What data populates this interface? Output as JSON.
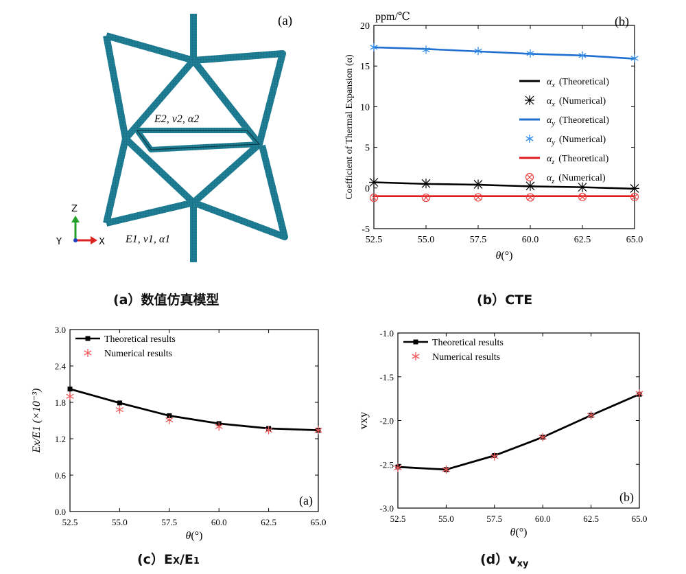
{
  "panel_a": {
    "label": "(a)",
    "layer2_props": "E2, ν2, α2",
    "layer1_props": "E1, ν1, α1",
    "axes": {
      "z": "Z",
      "y": "Y",
      "x": "X"
    },
    "colors": {
      "mesh": "#1f7f96",
      "mesh_dark": "#145a6b",
      "axis_z": "#22a02a",
      "axis_x": "#d22",
      "axis_y": "#2040c0"
    }
  },
  "captions": {
    "a": "(a）数值仿真模型",
    "b": "(b）CTE",
    "c_prefix": "(c）E",
    "c_sub_x": "X",
    "c_mid": "/E",
    "c_sub_1": "1",
    "d_prefix": "(d）v",
    "d_sub": "xy"
  },
  "chart_data": [
    {
      "type": "line",
      "panel_label": "(b)",
      "unit": "ppm/℃",
      "ylabel": "Coefficient of Thermal Expansion (α)",
      "xlabel": "θ(°)",
      "x": [
        52.5,
        55.0,
        57.5,
        60.0,
        62.5,
        65.0
      ],
      "xticks": [
        "52.5",
        "55.0",
        "57.5",
        "60.0",
        "62.5",
        "65.0"
      ],
      "yticks": [
        "-5",
        "0",
        "5",
        "10",
        "15",
        "20"
      ],
      "xlim": [
        52.5,
        65.0
      ],
      "ylim": [
        -5,
        20
      ],
      "series": [
        {
          "name": "αx (Theoretical)",
          "sym": "α",
          "sub": "x",
          "kind": "(Theoretical)",
          "style": "line",
          "color": "#000000",
          "values": [
            0.7,
            0.5,
            0.4,
            0.2,
            0.1,
            -0.1
          ]
        },
        {
          "name": "αx (Numerical)",
          "sym": "α",
          "sub": "x",
          "kind": "(Numerical)",
          "style": "star",
          "color": "#000000",
          "values": [
            0.7,
            0.55,
            0.45,
            0.25,
            0.1,
            -0.05
          ]
        },
        {
          "name": "αy (Theoretical)",
          "sym": "α",
          "sub": "y",
          "kind": "(Theoretical)",
          "style": "line",
          "color": "#1f6fd1",
          "values": [
            17.3,
            17.1,
            16.8,
            16.5,
            16.3,
            15.9
          ]
        },
        {
          "name": "αy (Numerical)",
          "sym": "α",
          "sub": "y",
          "kind": "(Numerical)",
          "style": "asterisk",
          "color": "#2f8ae8",
          "values": [
            17.3,
            17.0,
            16.85,
            16.55,
            16.3,
            15.95
          ]
        },
        {
          "name": "αz (Theoretical)",
          "sym": "α",
          "sub": "z",
          "kind": "(Theoretical)",
          "style": "line",
          "color": "#e11b1b",
          "values": [
            -1.0,
            -1.0,
            -1.0,
            -1.0,
            -1.0,
            -1.0
          ]
        },
        {
          "name": "αz (Numerical)",
          "sym": "α",
          "sub": "z",
          "kind": "(Numerical)",
          "style": "circlex",
          "color": "#e84545",
          "values": [
            -1.2,
            -1.2,
            -1.15,
            -1.15,
            -1.1,
            -1.1
          ]
        }
      ]
    },
    {
      "type": "line",
      "panel_label": "(a)",
      "ylabel": "Ex/E1  (×10⁻³)",
      "xlabel": "θ(°)",
      "x": [
        52.5,
        55.0,
        57.5,
        60.0,
        62.5,
        65.0
      ],
      "xticks": [
        "52.5",
        "55.0",
        "57.5",
        "60.0",
        "62.5",
        "65.0"
      ],
      "yticks": [
        "0.0",
        "0.6",
        "1.2",
        "1.8",
        "2.4",
        "3.0"
      ],
      "xlim": [
        52.5,
        65.0
      ],
      "ylim": [
        0.0,
        3.0
      ],
      "series": [
        {
          "name": "Theoretical results",
          "style": "line-square",
          "color": "#000000",
          "values": [
            2.02,
            1.79,
            1.58,
            1.45,
            1.37,
            1.34
          ]
        },
        {
          "name": "Numerical results",
          "style": "asterisk",
          "color": "#f05a5a",
          "values": [
            1.9,
            1.68,
            1.51,
            1.4,
            1.34,
            1.34
          ]
        }
      ]
    },
    {
      "type": "line",
      "panel_label": "(b)",
      "ylabel": "vxy",
      "xlabel": "θ(°)",
      "x": [
        52.5,
        55.0,
        57.5,
        60.0,
        62.5,
        65.0
      ],
      "xticks": [
        "52.5",
        "55.0",
        "57.5",
        "60.0",
        "62.5",
        "65.0"
      ],
      "yticks": [
        "-3.0",
        "-2.5",
        "-2.0",
        "-1.5",
        "-1.0"
      ],
      "xlim": [
        52.5,
        65.0
      ],
      "ylim": [
        -3.0,
        -1.0
      ],
      "series": [
        {
          "name": "Theoretical results",
          "style": "line-square",
          "color": "#000000",
          "values": [
            -2.53,
            -2.56,
            -2.4,
            -2.19,
            -1.94,
            -1.7
          ]
        },
        {
          "name": "Numerical results",
          "style": "asterisk",
          "color": "#f05a5a",
          "values": [
            -2.54,
            -2.56,
            -2.41,
            -2.19,
            -1.94,
            -1.69
          ]
        }
      ]
    }
  ]
}
